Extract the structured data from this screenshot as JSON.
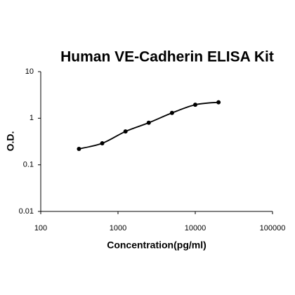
{
  "chart_data": {
    "type": "scatter",
    "title": "Human VE-Cadherin ELISA Kit",
    "x_label": "Concentration(pg/ml)",
    "y_label": "O.D.",
    "x": [
      312.5,
      625,
      1250,
      2500,
      5000,
      10000,
      20000
    ],
    "values": [
      0.22,
      0.29,
      0.52,
      0.8,
      1.3,
      1.95,
      2.2
    ],
    "color": "#000000",
    "connect": true,
    "xscale": "log",
    "yscale": "log",
    "xlim": [
      100,
      100000
    ],
    "ylim": [
      0.01,
      10
    ],
    "xticks": [
      100,
      1000,
      10000,
      100000
    ],
    "yticks": [
      0.01,
      0.1,
      1,
      10
    ]
  }
}
